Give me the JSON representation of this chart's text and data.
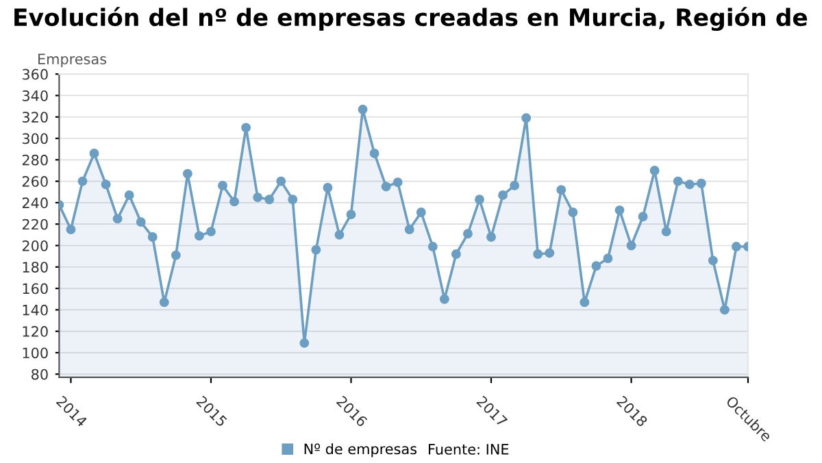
{
  "chart_data": {
    "type": "area",
    "title": "Evolución del nº de empresas creadas en Murcia, Región de",
    "ylabel": "Empresas",
    "categories": [
      null,
      "2014",
      null,
      null,
      null,
      null,
      null,
      null,
      null,
      null,
      null,
      null,
      null,
      "2015",
      null,
      null,
      null,
      null,
      null,
      null,
      null,
      null,
      null,
      null,
      null,
      "2016",
      null,
      null,
      null,
      null,
      null,
      null,
      null,
      null,
      null,
      null,
      null,
      "2017",
      null,
      null,
      null,
      null,
      null,
      null,
      null,
      null,
      null,
      null,
      null,
      "2018",
      null,
      null,
      null,
      null,
      null,
      null,
      null,
      null,
      null,
      "Octubre"
    ],
    "series": [
      {
        "name": "Nº de empresas",
        "color": "#6a9ec2",
        "values": [
          238,
          215,
          260,
          286,
          257,
          225,
          247,
          222,
          208,
          147,
          191,
          267,
          209,
          213,
          256,
          241,
          310,
          245,
          243,
          260,
          243,
          109,
          196,
          254,
          210,
          229,
          327,
          286,
          255,
          259,
          215,
          231,
          199,
          150,
          192,
          211,
          243,
          208,
          247,
          256,
          319,
          192,
          193,
          252,
          231,
          147,
          181,
          188,
          233,
          200,
          227,
          270,
          213,
          260,
          257,
          258,
          186,
          140,
          199,
          199
        ]
      }
    ],
    "ylim": [
      77,
      360
    ],
    "yticks": [
      80,
      100,
      120,
      140,
      160,
      180,
      200,
      220,
      240,
      260,
      280,
      300,
      320,
      340,
      360
    ],
    "grid": "y",
    "legend": "bottom",
    "marker": "circle",
    "line_style": "solid",
    "annotations": [
      "Fuente: INE"
    ]
  }
}
